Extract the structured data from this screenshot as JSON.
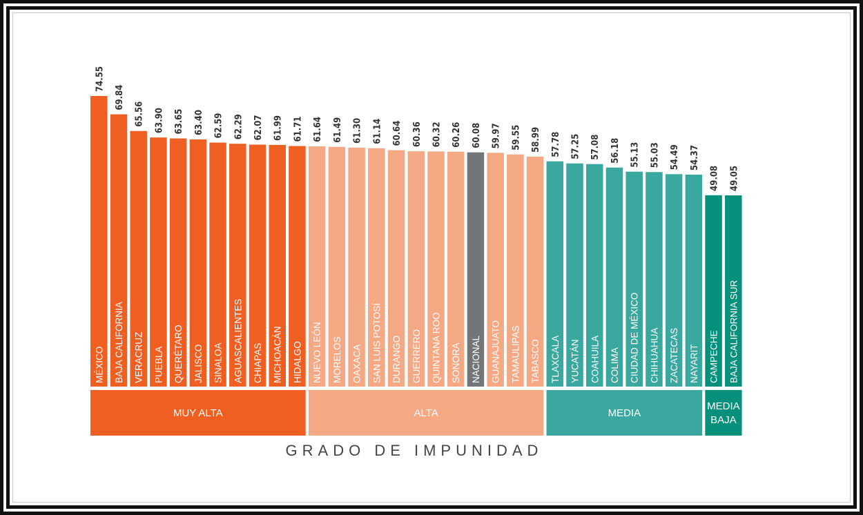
{
  "chart_data": {
    "type": "bar",
    "title": "",
    "xlabel": "GRADO DE IMPUNIDAD",
    "ylabel": "",
    "categories": [
      "MÉXICO",
      "BAJA CALIFORNIA",
      "VERACRUZ",
      "PUEBLA",
      "QUERÉTARO",
      "JALISCO",
      "SINALOA",
      "AGUASCALIENTES",
      "CHIAPAS",
      "MICHOACÁN",
      "HIDALGO",
      "NUEVO LEÓN",
      "MORELOS",
      "OAXACA",
      "SAN LUIS POTOSÍ",
      "DURANGO",
      "GUERRERO",
      "QUINTANA ROO",
      "SONORA",
      "NACIONAL",
      "GUANAJUATO",
      "TAMAULIPAS",
      "TABASCO",
      "TLAXCALA",
      "YUCATÁN",
      "COAHUILA",
      "COLIMA",
      "CIUDAD DE MÉXICO",
      "CHIHUAHUA",
      "ZACATECAS",
      "NAYARIT",
      "CAMPECHE",
      "BAJA CALIFORNIA SUR"
    ],
    "values": [
      74.55,
      69.84,
      65.56,
      63.9,
      63.65,
      63.4,
      62.59,
      62.29,
      62.07,
      61.99,
      61.71,
      61.64,
      61.49,
      61.3,
      61.14,
      60.64,
      60.36,
      60.32,
      60.26,
      60.08,
      59.97,
      59.55,
      58.99,
      57.78,
      57.25,
      57.08,
      56.18,
      55.13,
      55.03,
      54.49,
      54.37,
      49.08,
      49.05
    ],
    "value_labels": [
      "74.55",
      "69.84",
      "65.56",
      "63.90",
      "63.65",
      "63.40",
      "62.59",
      "62.29",
      "62.07",
      "61.99",
      "61.71",
      "61.64",
      "61.49",
      "61.30",
      "61.14",
      "60.64",
      "60.36",
      "60.32",
      "60.26",
      "60.08",
      "59.97",
      "59.55",
      "58.99",
      "57.78",
      "57.25",
      "57.08",
      "56.18",
      "55.13",
      "55.03",
      "54.49",
      "54.37",
      "49.08",
      "49.05"
    ],
    "groups": [
      {
        "label": "MUY ALTA",
        "start": 0,
        "end": 10,
        "color": "#EF5F22"
      },
      {
        "label": "ALTA",
        "start": 11,
        "end": 22,
        "color": "#F4A984"
      },
      {
        "label": "MEDIA",
        "start": 23,
        "end": 30,
        "color": "#3AA89E"
      },
      {
        "label": "MEDIA BAJA",
        "start": 31,
        "end": 32,
        "color": "#05907C"
      }
    ],
    "highlight": {
      "index": 19,
      "color": "#737678"
    },
    "ylim": [
      0,
      74.55
    ],
    "grid": false,
    "legend": "none"
  }
}
